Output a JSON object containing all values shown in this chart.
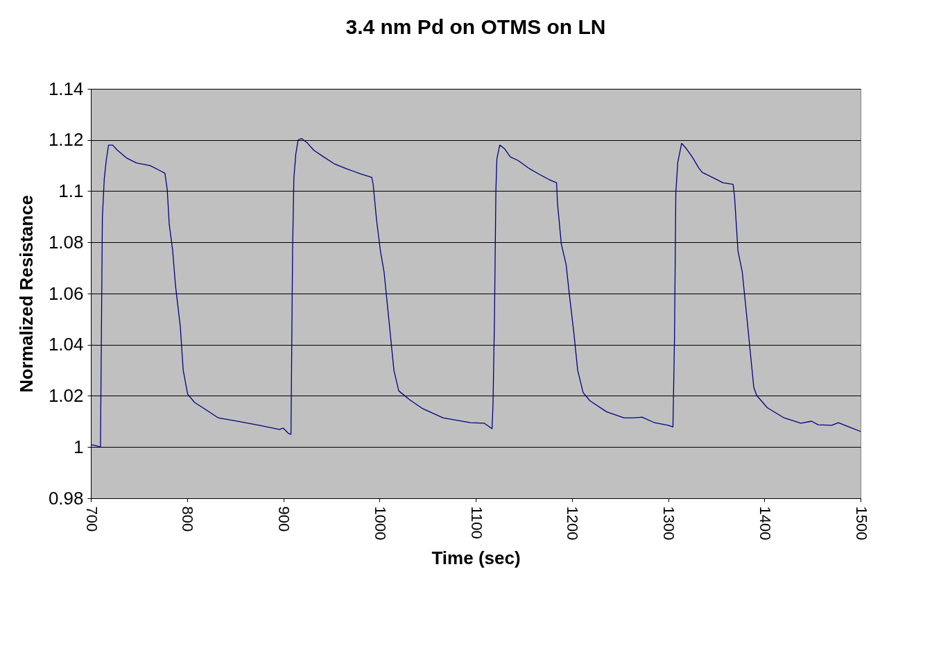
{
  "chart_data": {
    "type": "line",
    "title": "3.4 nm Pd on OTMS on LN",
    "xlabel": "Time (sec)",
    "ylabel": "Normalized Resistance",
    "xlim": [
      700,
      1500
    ],
    "xticks": [
      700,
      800,
      900,
      1000,
      1100,
      1200,
      1300,
      1400,
      1500
    ],
    "ylim": [
      0.98,
      1.14
    ],
    "yticks": [
      0.98,
      1,
      1.02,
      1.04,
      1.06,
      1.08,
      1.1,
      1.12,
      1.14
    ],
    "grid": "y",
    "marker": "none",
    "line_style": "solid",
    "x": [
      700,
      705.7,
      710,
      712,
      714,
      716,
      718.4,
      722.7,
      727.6,
      737,
      747.5,
      761.6,
      772,
      777,
      779.4,
      781.5,
      785,
      788,
      793,
      796,
      800.6,
      807.7,
      818,
      832.5,
      853.8,
      875,
      896,
      900,
      905.5,
      908,
      909.7,
      911,
      913,
      915.4,
      919,
      924.6,
      931.7,
      942,
      953,
      967,
      981,
      992,
      993.4,
      997,
      1001,
      1004.7,
      1009.7,
      1015,
      1020,
      1031,
      1045,
      1066,
      1094.7,
      1109,
      1117,
      1118,
      1119.5,
      1121,
      1122,
      1125,
      1130,
      1136,
      1144,
      1155,
      1165.5,
      1176,
      1184,
      1185,
      1189,
      1194,
      1197,
      1202,
      1206,
      1211.6,
      1218.7,
      1236,
      1254,
      1264.7,
      1273,
      1286,
      1300,
      1305,
      1306.6,
      1308,
      1310,
      1314,
      1319,
      1325,
      1332,
      1335.6,
      1346,
      1357,
      1367.5,
      1369,
      1372.6,
      1377,
      1382,
      1389,
      1392,
      1403,
      1420.6,
      1438,
      1449,
      1456,
      1470,
      1477,
      1491,
      1500
    ],
    "series": [
      {
        "color": "#000080",
        "values": [
          1.001,
          1.0005,
          1.0,
          1.09,
          1.105,
          1.112,
          1.118,
          1.118,
          1.116,
          1.113,
          1.111,
          1.11,
          1.108,
          1.107,
          1.1006,
          1.087,
          1.077,
          1.063,
          1.047,
          1.03,
          1.0207,
          1.0175,
          1.015,
          1.0114,
          1.01,
          1.0085,
          1.0069,
          1.0074,
          1.0053,
          1.005,
          1.077,
          1.105,
          1.1144,
          1.12,
          1.1206,
          1.119,
          1.116,
          1.1134,
          1.1107,
          1.1086,
          1.1067,
          1.1054,
          1.1027,
          1.0886,
          1.0766,
          1.0686,
          1.05,
          1.03,
          1.022,
          1.0186,
          1.015,
          1.0114,
          1.0095,
          1.0093,
          1.0072,
          1.0167,
          1.05,
          1.1006,
          1.1126,
          1.118,
          1.1166,
          1.1134,
          1.112,
          1.109,
          1.1067,
          1.1046,
          1.1033,
          1.0953,
          1.0793,
          1.0713,
          1.0607,
          1.0447,
          1.03,
          1.0213,
          1.0181,
          1.0138,
          1.0114,
          1.0114,
          1.0117,
          1.0095,
          1.0085,
          1.0079,
          1.042,
          1.0993,
          1.1112,
          1.1187,
          1.1166,
          1.1134,
          1.109,
          1.1073,
          1.1054,
          1.1033,
          1.1027,
          1.098,
          1.0766,
          1.0686,
          1.05,
          1.0234,
          1.0202,
          1.0154,
          1.0114,
          1.0093,
          1.0101,
          1.0087,
          1.0085,
          1.0095,
          1.0074,
          1.0061
        ]
      }
    ]
  }
}
